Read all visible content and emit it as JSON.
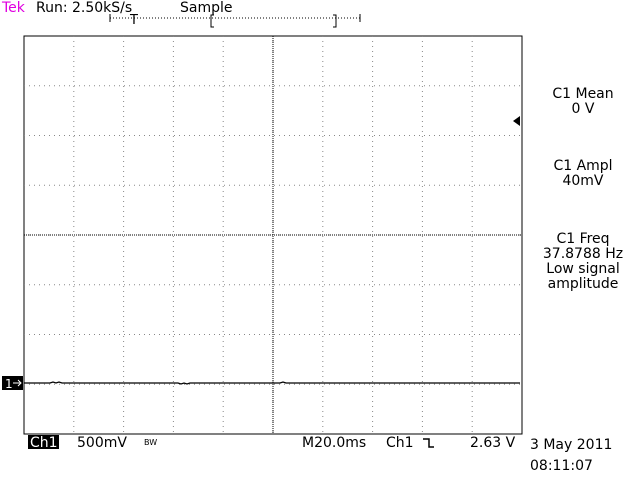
{
  "header": {
    "brand": "Tek",
    "status": "Run: 2.50kS/s",
    "mode": "Sample",
    "trigger_marker": "T"
  },
  "channel_marker": "1",
  "measurements": [
    {
      "label": "C1 Mean",
      "value": "0 V"
    },
    {
      "label": "C1 Ampl",
      "value": "40mV"
    },
    {
      "label": "C1 Freq",
      "value": "37.8788 Hz",
      "note": [
        "Low signal",
        "amplitude"
      ]
    }
  ],
  "footer": {
    "channel": "Ch1",
    "scale": "500mV",
    "bandwidth": "BW",
    "timebase": "M20.0ms",
    "trigger_source": "Ch1",
    "trigger_level": "2.63 V",
    "date": "3 May 2011",
    "time": "08:11:07"
  }
}
